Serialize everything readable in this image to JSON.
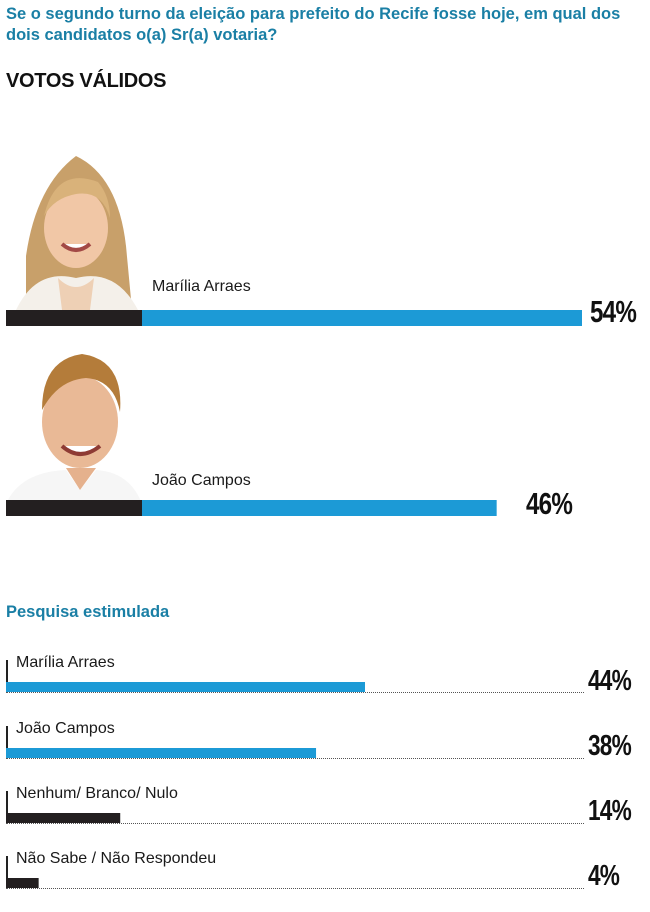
{
  "question": "Se o segundo turno da eleição para prefeito do Recife fosse hoje, em qual dos dois candidatos o(a) Sr(a) votaria?",
  "section1_title": "VOTOS VÁLIDOS",
  "section2_title": "Pesquisa estimulada",
  "colors": {
    "accent": "#1a7fa5",
    "bar_blue": "#1c9ad6",
    "bar_dark": "#231f20"
  },
  "chart_data": [
    {
      "type": "bar",
      "title": "VOTOS VÁLIDOS",
      "categories": [
        "Marília Arraes",
        "João Campos"
      ],
      "values": [
        54,
        46
      ],
      "labels": [
        "54%",
        "46%"
      ]
    },
    {
      "type": "bar",
      "title": "Pesquisa estimulada",
      "categories": [
        "Marília Arraes",
        "João Campos",
        "Nenhum/ Branco/ Nulo",
        "Não Sabe / Não Respondeu"
      ],
      "values": [
        44,
        38,
        14,
        4
      ],
      "labels": [
        "44%",
        "38%",
        "14%",
        "4%"
      ]
    }
  ]
}
